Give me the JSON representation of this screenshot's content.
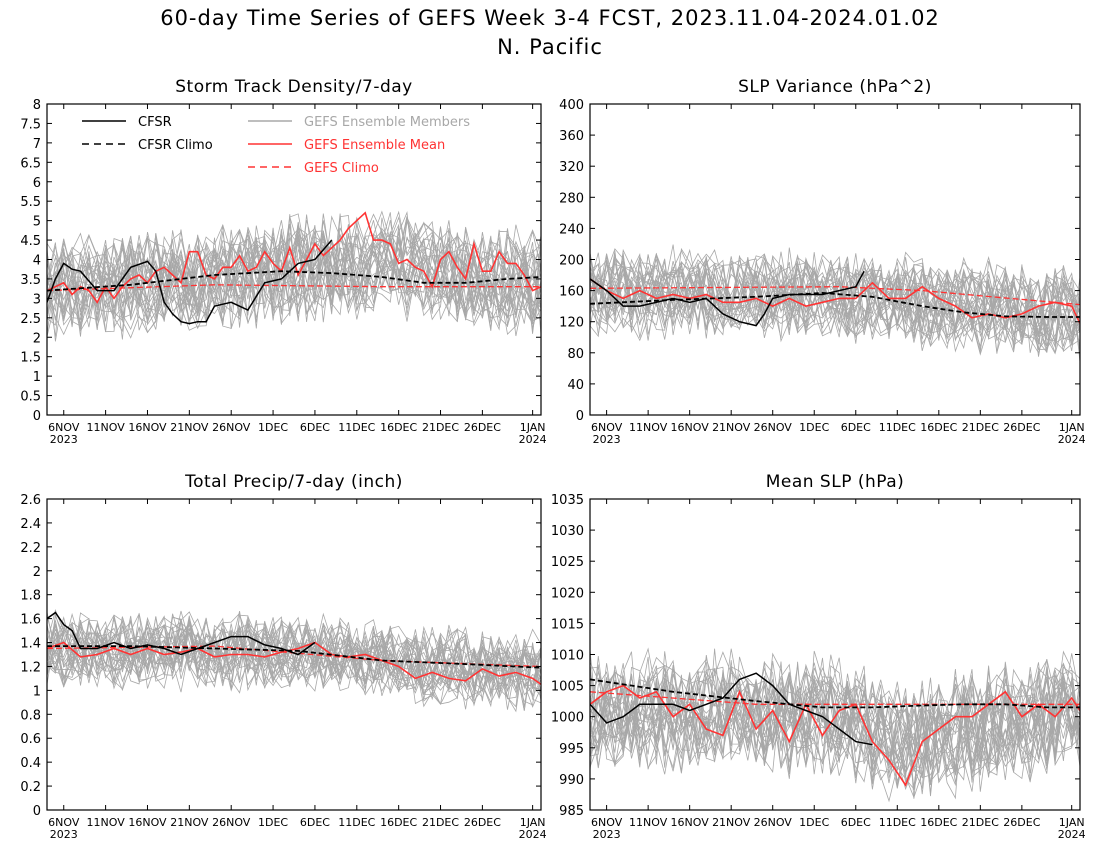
{
  "title": {
    "line1": "60-day Time Series of GEFS Week 3-4 FCST, 2023.11.04-2024.01.02",
    "line2": "N. Pacific"
  },
  "colors": {
    "cfsr": "#000000",
    "members": "#a8a8a8",
    "ens_mean": "#ff3333",
    "gefs_climo": "#ff3333"
  },
  "legend": {
    "cfsr": "CFSR",
    "cfsr_climo": "CFSR Climo",
    "members": "GEFS Ensemble Members",
    "ens_mean": "GEFS Ensemble Mean",
    "gefs_climo": "GEFS Climo"
  },
  "x_ticks": [
    {
      "top": "6NOV",
      "bottom": "2023"
    },
    {
      "top": "11NOV",
      "bottom": ""
    },
    {
      "top": "16NOV",
      "bottom": ""
    },
    {
      "top": "21NOV",
      "bottom": ""
    },
    {
      "top": "26NOV",
      "bottom": ""
    },
    {
      "top": "1DEC",
      "bottom": ""
    },
    {
      "top": "6DEC",
      "bottom": ""
    },
    {
      "top": "11DEC",
      "bottom": ""
    },
    {
      "top": "16DEC",
      "bottom": ""
    },
    {
      "top": "21DEC",
      "bottom": ""
    },
    {
      "top": "26DEC",
      "bottom": ""
    },
    {
      "top": "1JAN",
      "bottom": "2024"
    }
  ],
  "chart_data": [
    {
      "type": "line",
      "title": "Storm Track Density/7-day",
      "ylim": [
        0,
        8
      ],
      "yticks": [
        "0",
        "0.5",
        "1",
        "1.5",
        "2",
        "2.5",
        "3",
        "3.5",
        "4",
        "4.5",
        "5",
        "5.5",
        "6",
        "6.5",
        "7",
        "7.5",
        "8"
      ],
      "members_band": {
        "center": 3.4,
        "spread": 1.3,
        "mean_trend": [
          [
            0,
            3.2
          ],
          [
            28,
            3.7
          ],
          [
            40,
            3.9
          ],
          [
            59,
            3.3
          ]
        ]
      },
      "cfsr": {
        "x": [
          0,
          1,
          2,
          3,
          4,
          6,
          8,
          10,
          12,
          13,
          14,
          15,
          16,
          17,
          18,
          19,
          20,
          21,
          22,
          24,
          26,
          28,
          30,
          32,
          34
        ],
        "y": [
          2.9,
          3.5,
          3.9,
          3.75,
          3.7,
          3.2,
          3.2,
          3.8,
          3.95,
          3.7,
          2.9,
          2.6,
          2.4,
          2.35,
          2.4,
          2.4,
          2.8,
          2.85,
          2.9,
          2.7,
          3.4,
          3.5,
          3.9,
          4.0,
          4.5
        ]
      },
      "cfsr_climo": {
        "x": [
          0,
          10,
          20,
          28,
          34,
          40,
          45,
          50,
          55,
          59
        ],
        "y": [
          3.2,
          3.35,
          3.6,
          3.7,
          3.65,
          3.55,
          3.4,
          3.4,
          3.5,
          3.55
        ]
      },
      "ens_mean": {
        "x": [
          0,
          1,
          2,
          3,
          4,
          5,
          6,
          7,
          8,
          9,
          10,
          11,
          12,
          13,
          14,
          15,
          16,
          17,
          18,
          19,
          20,
          21,
          22,
          23,
          24,
          25,
          26,
          27,
          28,
          29,
          30,
          31,
          32,
          33,
          34,
          35,
          36,
          37,
          38,
          39,
          40,
          41,
          42,
          43,
          44,
          45,
          46,
          47,
          48,
          49,
          50,
          51,
          52,
          53,
          54,
          55,
          56,
          57,
          58,
          59
        ],
        "y": [
          3.2,
          3.3,
          3.4,
          3.1,
          3.3,
          3.2,
          2.9,
          3.3,
          3.0,
          3.3,
          3.5,
          3.6,
          3.4,
          3.7,
          3.8,
          3.6,
          3.4,
          4.2,
          4.2,
          3.6,
          3.5,
          3.8,
          3.8,
          4.1,
          3.7,
          3.8,
          4.2,
          3.9,
          3.7,
          4.3,
          3.6,
          4.0,
          4.4,
          4.1,
          4.3,
          4.5,
          4.8,
          5.0,
          5.2,
          4.5,
          4.5,
          4.4,
          3.9,
          4.0,
          3.8,
          3.7,
          3.3,
          4.0,
          4.2,
          3.8,
          3.5,
          4.4,
          3.7,
          3.7,
          4.2,
          3.9,
          3.9,
          3.6,
          3.2,
          3.3
        ]
      },
      "gefs_climo": {
        "x": [
          0,
          20,
          40,
          59
        ],
        "y": [
          3.2,
          3.35,
          3.3,
          3.3
        ]
      }
    },
    {
      "type": "line",
      "title": "SLP Variance (hPa^2)",
      "ylim": [
        0,
        400
      ],
      "yticks": [
        "0",
        "40",
        "80",
        "120",
        "160",
        "200",
        "240",
        "280",
        "320",
        "360",
        "400"
      ],
      "members_band": {
        "center": 150,
        "spread": 55,
        "mean_trend": [
          [
            0,
            160
          ],
          [
            30,
            155
          ],
          [
            40,
            145
          ],
          [
            59,
            130
          ]
        ]
      },
      "cfsr": {
        "x": [
          0,
          2,
          4,
          6,
          8,
          10,
          12,
          14,
          16,
          18,
          20,
          21,
          22,
          24,
          26,
          28,
          30,
          32,
          33
        ],
        "y": [
          175,
          160,
          140,
          140,
          145,
          150,
          145,
          150,
          130,
          120,
          115,
          130,
          150,
          155,
          155,
          155,
          160,
          165,
          185
        ]
      },
      "cfsr_climo": {
        "x": [
          0,
          10,
          20,
          28,
          34,
          40,
          45,
          50,
          55,
          59
        ],
        "y": [
          143,
          148,
          152,
          157,
          152,
          140,
          132,
          127,
          126,
          126
        ]
      },
      "ens_mean": {
        "x": [
          0,
          2,
          4,
          6,
          8,
          10,
          12,
          14,
          16,
          18,
          20,
          22,
          24,
          26,
          28,
          30,
          32,
          34,
          36,
          38,
          40,
          42,
          44,
          46,
          48,
          50,
          52,
          54,
          56,
          58,
          59
        ],
        "y": [
          175,
          160,
          150,
          160,
          150,
          155,
          150,
          155,
          145,
          145,
          150,
          140,
          150,
          140,
          145,
          150,
          150,
          170,
          150,
          150,
          165,
          150,
          140,
          125,
          130,
          125,
          130,
          140,
          145,
          140,
          118
        ]
      },
      "gefs_climo": {
        "x": [
          0,
          30,
          40,
          59
        ],
        "y": [
          163,
          165,
          160,
          142
        ]
      }
    },
    {
      "type": "line",
      "title": "Total Precip/7-day (inch)",
      "ylim": [
        0,
        2.6
      ],
      "yticks": [
        "0",
        "0.2",
        "0.4",
        "0.6",
        "0.8",
        "1",
        "1.2",
        "1.4",
        "1.6",
        "1.8",
        "2",
        "2.2",
        "2.4",
        "2.6"
      ],
      "members_band": {
        "center": 1.3,
        "spread": 0.3,
        "mean_trend": [
          [
            0,
            1.35
          ],
          [
            30,
            1.33
          ],
          [
            45,
            1.2
          ],
          [
            59,
            1.15
          ]
        ]
      },
      "cfsr": {
        "x": [
          0,
          1,
          2,
          3,
          4,
          6,
          8,
          10,
          12,
          14,
          16,
          18,
          20,
          22,
          24,
          26,
          28,
          30,
          32
        ],
        "y": [
          1.6,
          1.65,
          1.55,
          1.5,
          1.35,
          1.35,
          1.4,
          1.35,
          1.38,
          1.35,
          1.3,
          1.35,
          1.4,
          1.45,
          1.45,
          1.38,
          1.35,
          1.3,
          1.4
        ]
      },
      "cfsr_climo": {
        "x": [
          0,
          10,
          20,
          30,
          40,
          50,
          59
        ],
        "y": [
          1.37,
          1.37,
          1.35,
          1.33,
          1.25,
          1.22,
          1.19
        ]
      },
      "ens_mean": {
        "x": [
          0,
          2,
          4,
          6,
          8,
          10,
          12,
          14,
          16,
          18,
          20,
          22,
          24,
          26,
          28,
          30,
          32,
          34,
          36,
          38,
          40,
          42,
          44,
          46,
          48,
          50,
          52,
          54,
          56,
          58,
          59
        ],
        "y": [
          1.35,
          1.4,
          1.28,
          1.3,
          1.35,
          1.3,
          1.35,
          1.3,
          1.32,
          1.35,
          1.28,
          1.3,
          1.3,
          1.28,
          1.32,
          1.35,
          1.4,
          1.3,
          1.28,
          1.3,
          1.25,
          1.2,
          1.1,
          1.15,
          1.1,
          1.08,
          1.18,
          1.12,
          1.15,
          1.1,
          1.05
        ]
      },
      "gefs_climo": {
        "x": [
          0,
          20,
          40,
          59
        ],
        "y": [
          1.35,
          1.37,
          1.25,
          1.2
        ]
      }
    },
    {
      "type": "line",
      "title": "Mean SLP (hPa)",
      "ylim": [
        985,
        1035
      ],
      "yticks": [
        "985",
        "990",
        "995",
        "1000",
        "1005",
        "1010",
        "1015",
        "1020",
        "1025",
        "1030",
        "1035"
      ],
      "members_band": {
        "center": 1000,
        "spread": 9,
        "mean_trend": [
          [
            0,
            1001
          ],
          [
            30,
            1000
          ],
          [
            38,
            996
          ],
          [
            59,
            1001
          ]
        ]
      },
      "cfsr": {
        "x": [
          0,
          2,
          4,
          6,
          8,
          10,
          12,
          14,
          16,
          18,
          20,
          22,
          24,
          26,
          28,
          30,
          32,
          34
        ],
        "y": [
          1002,
          999,
          1000,
          1002,
          1002,
          1002,
          1001,
          1002,
          1003,
          1006,
          1007,
          1005,
          1002,
          1001,
          1000,
          998,
          996,
          995.5
        ]
      },
      "cfsr_climo": {
        "x": [
          0,
          10,
          20,
          28,
          34,
          40,
          45,
          50,
          55,
          59
        ],
        "y": [
          1006,
          1004,
          1002.5,
          1001.5,
          1001.5,
          1001.8,
          1002,
          1002,
          1001.5,
          1001.5
        ]
      },
      "ens_mean": {
        "x": [
          0,
          2,
          4,
          6,
          8,
          10,
          12,
          14,
          16,
          18,
          20,
          22,
          24,
          26,
          28,
          30,
          32,
          34,
          36,
          38,
          40,
          42,
          44,
          46,
          48,
          50,
          52,
          54,
          56,
          58,
          59
        ],
        "y": [
          1002,
          1004,
          1005,
          1003,
          1004,
          1000,
          1002,
          998,
          997,
          1004,
          998,
          1001,
          996,
          1002,
          997,
          1001,
          1002,
          996,
          993,
          989,
          996,
          998,
          1000,
          1000,
          1002,
          1004,
          1000,
          1002,
          1000,
          1003,
          1001
        ]
      },
      "gefs_climo": {
        "x": [
          0,
          20,
          40,
          59
        ],
        "y": [
          1004,
          1002,
          1002,
          1002
        ]
      }
    }
  ]
}
